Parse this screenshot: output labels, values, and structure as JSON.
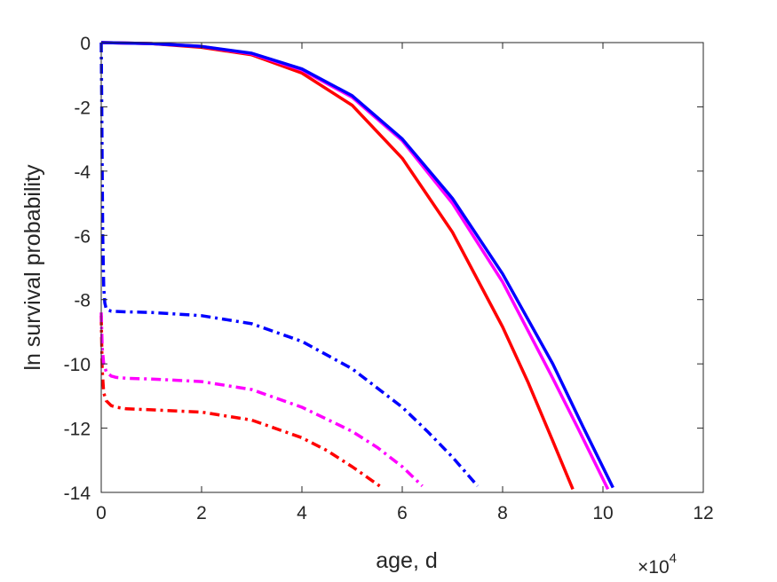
{
  "chart_data": {
    "type": "line",
    "xlabel": "age, d",
    "ylabel": "ln survival probability",
    "x_multiplier_text": "10",
    "x_multiplier_exponent": "4",
    "xlim": [
      0,
      120000
    ],
    "ylim": [
      -14,
      0
    ],
    "xticks": [
      0,
      20000,
      40000,
      60000,
      80000,
      100000,
      120000
    ],
    "xtick_labels": [
      "0",
      "2",
      "4",
      "6",
      "8",
      "10",
      "12"
    ],
    "yticks": [
      0,
      -2,
      -4,
      -6,
      -8,
      -10,
      -12,
      -14
    ],
    "ytick_labels": [
      "0",
      "-2",
      "-4",
      "-6",
      "-8",
      "-10",
      "-12",
      "-14"
    ],
    "grid": false,
    "box": true,
    "series": [
      {
        "color": "#ff0000",
        "style": "solid",
        "x": [
          0,
          10000,
          20000,
          30000,
          40000,
          50000,
          60000,
          70000,
          80000,
          85000,
          90000,
          94000
        ],
        "y": [
          0,
          -0.03,
          -0.15,
          -0.38,
          -0.95,
          -1.95,
          -3.6,
          -5.9,
          -8.85,
          -10.55,
          -12.4,
          -13.9
        ]
      },
      {
        "color": "#ff00ff",
        "style": "solid",
        "x": [
          0,
          10000,
          20000,
          30000,
          40000,
          50000,
          60000,
          70000,
          80000,
          90000,
          95000,
          101000
        ],
        "y": [
          0,
          -0.03,
          -0.12,
          -0.35,
          -0.85,
          -1.7,
          -3.05,
          -5.0,
          -7.45,
          -10.45,
          -12.0,
          -13.9
        ]
      },
      {
        "color": "#0000ff",
        "style": "solid",
        "x": [
          0,
          10000,
          20000,
          30000,
          40000,
          50000,
          60000,
          70000,
          80000,
          90000,
          96000,
          102000
        ],
        "y": [
          0,
          -0.03,
          -0.12,
          -0.33,
          -0.82,
          -1.65,
          -3.0,
          -4.85,
          -7.2,
          -10.0,
          -11.95,
          -13.85
        ]
      },
      {
        "color": "#ff0000",
        "style": "dashdot",
        "x": [
          0,
          200,
          500,
          1000,
          2000,
          3000,
          5000,
          10000,
          20000,
          30000,
          40000,
          45000,
          50000,
          55500
        ],
        "y": [
          -8.5,
          -10.2,
          -10.9,
          -11.15,
          -11.3,
          -11.35,
          -11.4,
          -11.43,
          -11.5,
          -11.75,
          -12.3,
          -12.7,
          -13.2,
          -13.8
        ]
      },
      {
        "color": "#ff00ff",
        "style": "dashdot",
        "x": [
          0,
          200,
          500,
          1000,
          2000,
          3000,
          5000,
          10000,
          20000,
          30000,
          40000,
          50000,
          55000,
          60000,
          64000
        ],
        "y": [
          -8.4,
          -9.5,
          -10.0,
          -10.25,
          -10.38,
          -10.42,
          -10.45,
          -10.47,
          -10.55,
          -10.8,
          -11.35,
          -12.1,
          -12.6,
          -13.2,
          -13.8
        ]
      },
      {
        "color": "#0000ff",
        "style": "dashdot",
        "x": [
          0,
          100,
          200,
          300,
          500,
          700,
          1000,
          2000,
          5000,
          10000,
          20000,
          30000,
          40000,
          50000,
          60000,
          65000,
          70000,
          75000
        ],
        "y": [
          0,
          -2.0,
          -4.0,
          -6.0,
          -7.6,
          -8.1,
          -8.3,
          -8.36,
          -8.38,
          -8.4,
          -8.5,
          -8.75,
          -9.3,
          -10.15,
          -11.35,
          -12.1,
          -12.9,
          -13.8
        ]
      }
    ]
  }
}
